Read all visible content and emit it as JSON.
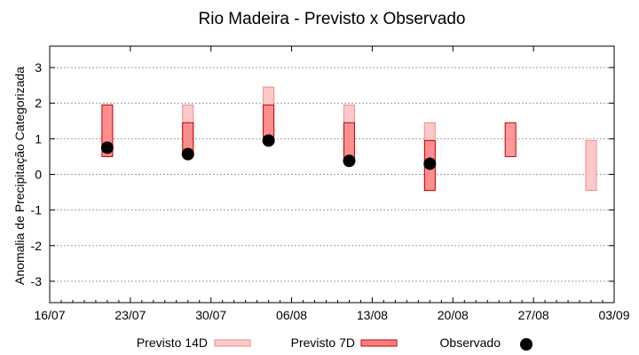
{
  "chart_data": {
    "type": "range-bar",
    "title": "Rio Madeira - Previsto x Observado",
    "xlabel": "",
    "ylabel": "Anomalia de Precipitação Categorizada",
    "ylim": [
      -3.6,
      3.6
    ],
    "yticks": [
      -3,
      -2,
      -1,
      0,
      1,
      2,
      3
    ],
    "xlim": [
      "2023-07-16",
      "2023-09-03"
    ],
    "xticks": [
      {
        "date": "2023-07-16",
        "label": "16/07"
      },
      {
        "date": "2023-07-23",
        "label": "23/07"
      },
      {
        "date": "2023-07-30",
        "label": "30/07"
      },
      {
        "date": "2023-08-06",
        "label": "06/08"
      },
      {
        "date": "2023-08-13",
        "label": "13/08"
      },
      {
        "date": "2023-08-20",
        "label": "20/08"
      },
      {
        "date": "2023-08-27",
        "label": "27/08"
      },
      {
        "date": "2023-09-03",
        "label": "03/09"
      }
    ],
    "grid": true,
    "legend_position": "bottom",
    "series": [
      {
        "name": "Previsto 14D",
        "kind": "range",
        "fill": "#fbc9c9",
        "stroke": "#f08a8a",
        "points": [
          {
            "date": "2023-07-21",
            "low": 0.5,
            "high": 1.95
          },
          {
            "date": "2023-07-28",
            "low": 0.6,
            "high": 1.95
          },
          {
            "date": "2023-08-04",
            "low": 1.0,
            "high": 2.45
          },
          {
            "date": "2023-08-11",
            "low": 0.4,
            "high": 1.95
          },
          {
            "date": "2023-08-18",
            "low": -0.45,
            "high": 1.45
          },
          {
            "date": "2023-09-01",
            "low": -0.45,
            "high": 0.95
          }
        ]
      },
      {
        "name": "Previsto 7D",
        "kind": "range",
        "fill": "#ff7f7f",
        "stroke": "#c00000",
        "points": [
          {
            "date": "2023-07-21",
            "low": 0.5,
            "high": 1.95
          },
          {
            "date": "2023-07-28",
            "low": 0.55,
            "high": 1.45
          },
          {
            "date": "2023-08-04",
            "low": 0.95,
            "high": 1.95
          },
          {
            "date": "2023-08-11",
            "low": 0.4,
            "high": 1.45
          },
          {
            "date": "2023-08-18",
            "low": -0.45,
            "high": 0.95
          },
          {
            "date": "2023-08-25",
            "low": 0.5,
            "high": 1.45
          }
        ]
      },
      {
        "name": "Observado",
        "kind": "point",
        "color": "#000000",
        "points": [
          {
            "date": "2023-07-21",
            "value": 0.75
          },
          {
            "date": "2023-07-28",
            "value": 0.57
          },
          {
            "date": "2023-08-04",
            "value": 0.95
          },
          {
            "date": "2023-08-11",
            "value": 0.38
          },
          {
            "date": "2023-08-18",
            "value": 0.3
          }
        ]
      }
    ]
  }
}
